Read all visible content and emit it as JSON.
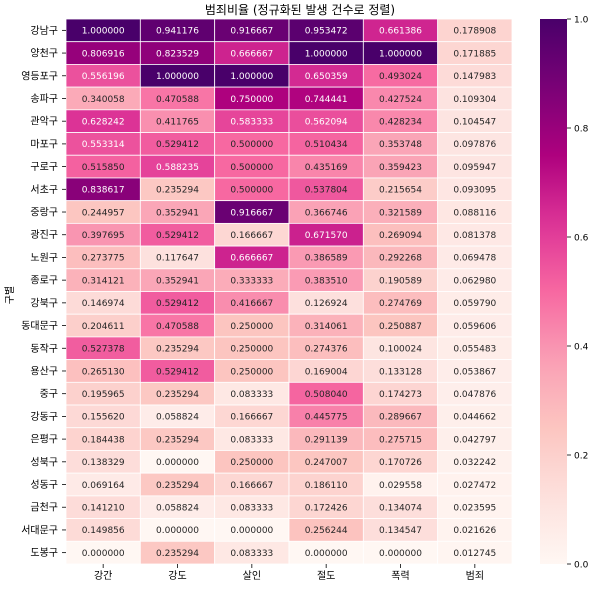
{
  "chart_data": {
    "type": "heatmap",
    "title": "범죄비율 (정규화된 발생 건수로 정렬)",
    "ylabel": "구별",
    "xlabel": "",
    "columns": [
      "강간",
      "강도",
      "살인",
      "절도",
      "폭력",
      "범죄"
    ],
    "rows": [
      "강남구",
      "양천구",
      "영등포구",
      "송파구",
      "관악구",
      "마포구",
      "구로구",
      "서초구",
      "중랑구",
      "광진구",
      "노원구",
      "종로구",
      "강북구",
      "동대문구",
      "동작구",
      "용산구",
      "중구",
      "강동구",
      "은평구",
      "성북구",
      "성동구",
      "금천구",
      "서대문구",
      "도봉구"
    ],
    "values": [
      [
        1.0,
        0.941176,
        0.916667,
        0.953472,
        0.661386,
        0.178908
      ],
      [
        0.806916,
        0.823529,
        0.666667,
        1.0,
        1.0,
        0.171885
      ],
      [
        0.556196,
        1.0,
        1.0,
        0.650359,
        0.493024,
        0.147983
      ],
      [
        0.340058,
        0.470588,
        0.75,
        0.744441,
        0.427524,
        0.109304
      ],
      [
        0.628242,
        0.411765,
        0.583333,
        0.562094,
        0.428234,
        0.104547
      ],
      [
        0.553314,
        0.529412,
        0.5,
        0.510434,
        0.353748,
        0.097876
      ],
      [
        0.51585,
        0.588235,
        0.5,
        0.435169,
        0.359423,
        0.095947
      ],
      [
        0.838617,
        0.235294,
        0.5,
        0.537804,
        0.215654,
        0.093095
      ],
      [
        0.244957,
        0.352941,
        0.916667,
        0.366746,
        0.321589,
        0.088116
      ],
      [
        0.397695,
        0.529412,
        0.166667,
        0.67157,
        0.269094,
        0.081378
      ],
      [
        0.273775,
        0.117647,
        0.666667,
        0.386589,
        0.292268,
        0.069478
      ],
      [
        0.314121,
        0.352941,
        0.333333,
        0.38351,
        0.190589,
        0.06298
      ],
      [
        0.146974,
        0.529412,
        0.416667,
        0.126924,
        0.274769,
        0.05979
      ],
      [
        0.204611,
        0.470588,
        0.25,
        0.314061,
        0.250887,
        0.059606
      ],
      [
        0.527378,
        0.235294,
        0.25,
        0.274376,
        0.100024,
        0.055483
      ],
      [
        0.26513,
        0.529412,
        0.25,
        0.169004,
        0.133128,
        0.053867
      ],
      [
        0.195965,
        0.235294,
        0.083333,
        0.50804,
        0.174273,
        0.047876
      ],
      [
        0.15562,
        0.058824,
        0.166667,
        0.445775,
        0.289667,
        0.044662
      ],
      [
        0.184438,
        0.235294,
        0.083333,
        0.291139,
        0.275715,
        0.042797
      ],
      [
        0.138329,
        0.0,
        0.25,
        0.247007,
        0.170726,
        0.032242
      ],
      [
        0.069164,
        0.235294,
        0.166667,
        0.18611,
        0.029558,
        0.027472
      ],
      [
        0.14121,
        0.058824,
        0.083333,
        0.172426,
        0.134074,
        0.023595
      ],
      [
        0.149856,
        0.0,
        0.0,
        0.256244,
        0.134547,
        0.021626
      ],
      [
        0.0,
        0.235294,
        0.083333,
        0.0,
        0.0,
        0.012745
      ]
    ],
    "value_format": "0.000000",
    "colormap": "RdPu",
    "colorbar": {
      "range": [
        0.0,
        1.0
      ],
      "ticks": [
        0.0,
        0.2,
        0.4,
        0.6,
        0.8,
        1.0
      ],
      "tick_labels": [
        "0.0",
        "0.2",
        "0.4",
        "0.6",
        "0.8",
        "1.0"
      ]
    },
    "grid": true,
    "colors": {
      "cell_border": "#ffffff",
      "text_dark": "#262626",
      "text_light": "#ffffff",
      "axis": "#000000"
    }
  }
}
